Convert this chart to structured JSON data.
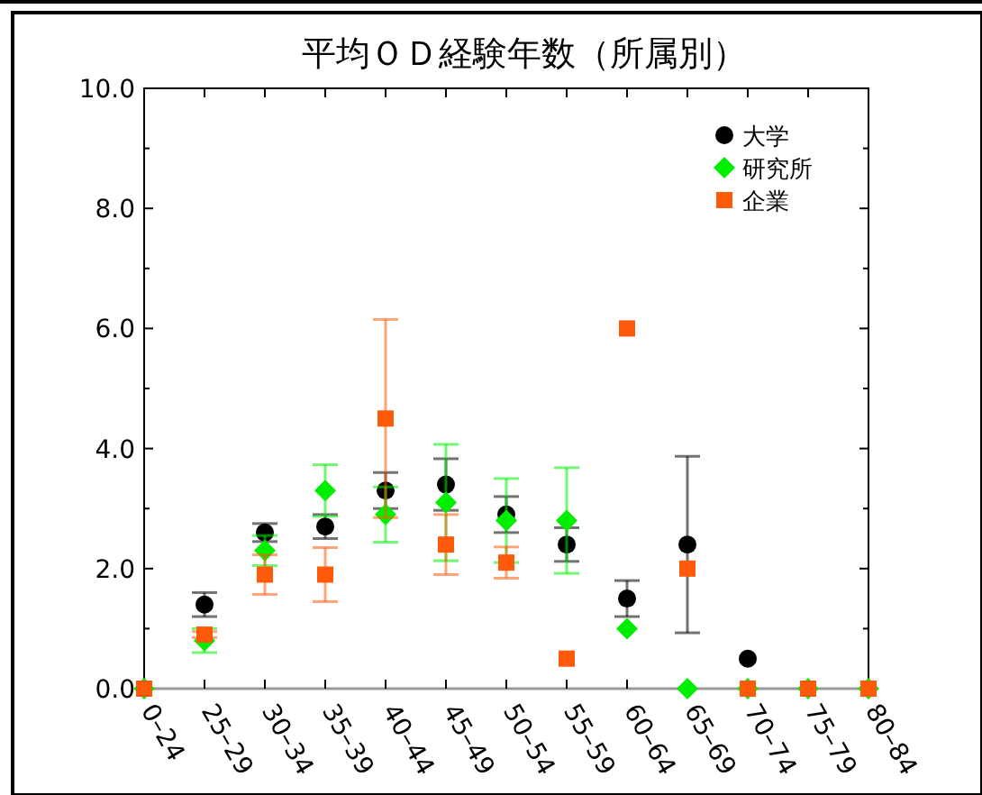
{
  "chart_data": {
    "type": "scatter",
    "title": "平均ＯＤ経験年数（所属別）",
    "categories": [
      "0–24",
      "25–29",
      "30–34",
      "35–39",
      "40–44",
      "45–49",
      "50–54",
      "55–59",
      "60–64",
      "65–69",
      "70–74",
      "75–79",
      "80–84"
    ],
    "ylim": [
      0,
      10
    ],
    "yticks": [
      {
        "value": 0,
        "label": "0.0"
      },
      {
        "value": 1,
        "label": null
      },
      {
        "value": 2,
        "label": "2.0"
      },
      {
        "value": 3,
        "label": null
      },
      {
        "value": 4,
        "label": "4.0"
      },
      {
        "value": 5,
        "label": null
      },
      {
        "value": 6,
        "label": "6.0"
      },
      {
        "value": 7,
        "label": null
      },
      {
        "value": 8,
        "label": "8.0"
      },
      {
        "value": 9,
        "label": null
      },
      {
        "value": 10,
        "label": "10.0"
      }
    ],
    "legend": "top right",
    "grid": false,
    "series": [
      {
        "name": "大学",
        "color": "#000000",
        "marker": "circle",
        "values": [
          null,
          1.4,
          2.6,
          2.7,
          3.3,
          3.4,
          2.9,
          2.4,
          1.5,
          2.4,
          0.5,
          null,
          null
        ],
        "errors": [
          null,
          0.2,
          0.15,
          0.2,
          0.3,
          0.43,
          0.3,
          0.28,
          0.3,
          1.47,
          null,
          null,
          null
        ]
      },
      {
        "name": "研究所",
        "color": "#00ee00",
        "marker": "diamond",
        "values": [
          0,
          0.8,
          2.3,
          3.3,
          2.9,
          3.1,
          2.8,
          2.8,
          1.0,
          0,
          0,
          0,
          0
        ],
        "errors": [
          null,
          0.2,
          0.25,
          0.43,
          0.46,
          0.97,
          0.7,
          0.88,
          null,
          null,
          null,
          null,
          null
        ]
      },
      {
        "name": "企業",
        "color": "#ff5a0a",
        "marker": "square",
        "values": [
          0,
          0.9,
          1.9,
          1.9,
          4.5,
          2.4,
          2.1,
          0.5,
          6.0,
          2.0,
          0,
          0,
          0
        ],
        "errors": [
          null,
          0.05,
          0.33,
          0.45,
          1.65,
          0.5,
          0.26,
          null,
          null,
          null,
          null,
          null,
          null
        ]
      }
    ]
  }
}
